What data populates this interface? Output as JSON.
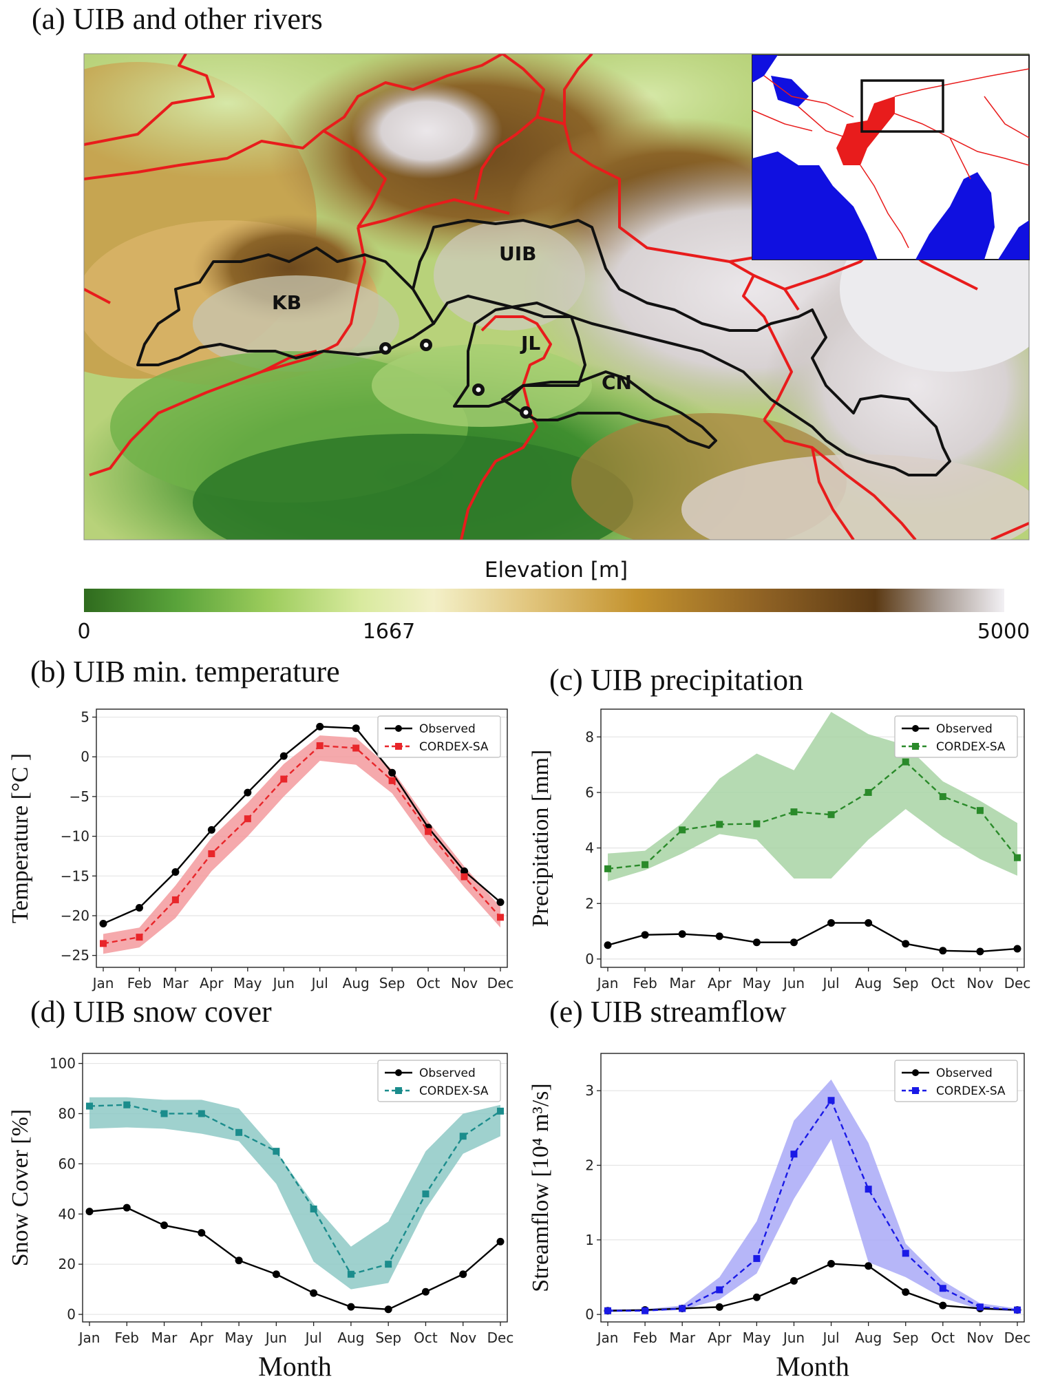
{
  "map_panel": {
    "title": "(a) UIB and other rivers",
    "basin_labels": [
      "KB",
      "UIB",
      "JL",
      "CN"
    ],
    "colorbar": {
      "title": "Elevation [m]",
      "ticks": [
        "0",
        "1667",
        "5000"
      ]
    }
  },
  "chart_data": [
    {
      "id": "b",
      "type": "line",
      "title": "(b) UIB min. temperature",
      "xlabel": "",
      "ylabel": "Temperature [°C ]",
      "categories": [
        "Jan",
        "Feb",
        "Mar",
        "Apr",
        "May",
        "Jun",
        "Jul",
        "Aug",
        "Sep",
        "Oct",
        "Nov",
        "Dec"
      ],
      "ylim": [
        -26.5,
        6
      ],
      "yticks": [
        5,
        0,
        -5,
        -10,
        -15,
        -20,
        -25
      ],
      "legend_position": "top-right",
      "series": [
        {
          "name": "Observed",
          "color": "#000000",
          "style": "solid",
          "marker": "circle",
          "values": [
            -21,
            -19,
            -14.5,
            -9.2,
            -4.5,
            0.1,
            3.8,
            3.6,
            -2,
            -8.9,
            -14.4,
            -18.3
          ]
        },
        {
          "name": "CORDEX-SA",
          "color": "#e8262a",
          "style": "dashed",
          "marker": "square",
          "values": [
            -23.5,
            -22.7,
            -18,
            -12.2,
            -7.8,
            -2.8,
            1.4,
            1.1,
            -3,
            -9.4,
            -15.1,
            -20.2
          ],
          "band_low": [
            -24.8,
            -24,
            -20.3,
            -14.4,
            -10,
            -5,
            -0.5,
            -1,
            -4.6,
            -10.9,
            -16.4,
            -21.5
          ],
          "band_high": [
            -22.3,
            -21.5,
            -16.2,
            -10.2,
            -5.8,
            -0.9,
            2.7,
            2.4,
            -1.6,
            -8.1,
            -13.8,
            -18.9
          ],
          "band_color": "#f39a9d"
        }
      ]
    },
    {
      "id": "c",
      "type": "line",
      "title": "(c) UIB precipitation",
      "xlabel": "",
      "ylabel": "Precipitation [mm]",
      "categories": [
        "Jan",
        "Feb",
        "Mar",
        "Apr",
        "May",
        "Jun",
        "Jul",
        "Aug",
        "Sep",
        "Oct",
        "Nov",
        "Dec"
      ],
      "ylim": [
        -0.3,
        9
      ],
      "yticks": [
        0,
        2,
        4,
        6,
        8
      ],
      "legend_position": "top-right",
      "series": [
        {
          "name": "Observed",
          "color": "#000000",
          "style": "solid",
          "marker": "circle",
          "values": [
            0.5,
            0.87,
            0.9,
            0.82,
            0.6,
            0.6,
            1.3,
            1.3,
            0.55,
            0.3,
            0.27,
            0.37
          ]
        },
        {
          "name": "CORDEX-SA",
          "color": "#2a8a2a",
          "style": "dashed",
          "marker": "square",
          "values": [
            3.25,
            3.4,
            4.65,
            4.85,
            4.87,
            5.3,
            5.2,
            6.0,
            7.1,
            5.85,
            5.35,
            3.65
          ],
          "band_low": [
            2.8,
            3.2,
            3.8,
            4.5,
            4.3,
            2.9,
            2.9,
            4.3,
            5.4,
            4.4,
            3.6,
            3.0
          ],
          "band_high": [
            3.8,
            3.9,
            4.9,
            6.5,
            7.4,
            6.8,
            8.9,
            8.1,
            7.7,
            6.4,
            5.7,
            4.9
          ],
          "band_color": "#a8d3a4"
        }
      ]
    },
    {
      "id": "d",
      "type": "line",
      "title": "(d) UIB snow cover",
      "xlabel": "Month",
      "ylabel": "Snow Cover [%]",
      "categories": [
        "Jan",
        "Feb",
        "Mar",
        "Apr",
        "May",
        "Jun",
        "Jul",
        "Aug",
        "Sep",
        "Oct",
        "Nov",
        "Dec"
      ],
      "ylim": [
        -3,
        104
      ],
      "yticks": [
        0,
        20,
        40,
        60,
        80,
        100
      ],
      "legend_position": "top-right",
      "series": [
        {
          "name": "Observed",
          "color": "#000000",
          "style": "solid",
          "marker": "circle",
          "values": [
            41,
            42.5,
            35.5,
            32.5,
            21.5,
            16,
            8.5,
            3,
            2,
            9,
            16,
            29
          ]
        },
        {
          "name": "CORDEX-SA",
          "color": "#1b8c8c",
          "style": "dashed",
          "marker": "square",
          "values": [
            83,
            83.5,
            80,
            80,
            72.5,
            65,
            42,
            16,
            20,
            48,
            71,
            81
          ],
          "band_low": [
            74,
            74.5,
            74,
            72,
            69,
            52,
            21,
            10,
            12.5,
            42,
            64,
            71
          ],
          "band_high": [
            86.5,
            86.5,
            85.5,
            85.5,
            82,
            65,
            44,
            27,
            37,
            65,
            80,
            83.5
          ],
          "band_color": "#8ec9c5"
        }
      ]
    },
    {
      "id": "e",
      "type": "line",
      "title": "(e) UIB streamflow",
      "xlabel": "Month",
      "ylabel": "Streamflow [10⁴ m³/s]",
      "categories": [
        "Jan",
        "Feb",
        "Mar",
        "Apr",
        "May",
        "Jun",
        "Jul",
        "Aug",
        "Sep",
        "Oct",
        "Nov",
        "Dec"
      ],
      "ylim": [
        -0.1,
        3.5
      ],
      "yticks": [
        0,
        1,
        2,
        3
      ],
      "legend_position": "top-right",
      "series": [
        {
          "name": "Observed",
          "color": "#000000",
          "style": "solid",
          "marker": "circle",
          "values": [
            0.05,
            0.06,
            0.08,
            0.1,
            0.23,
            0.45,
            0.68,
            0.65,
            0.3,
            0.12,
            0.08,
            0.06
          ]
        },
        {
          "name": "CORDEX-SA",
          "color": "#1a1ae6",
          "style": "dashed",
          "marker": "square",
          "values": [
            0.05,
            0.05,
            0.08,
            0.33,
            0.75,
            2.15,
            2.87,
            1.68,
            0.82,
            0.35,
            0.1,
            0.06
          ],
          "band_low": [
            0.03,
            0.04,
            0.06,
            0.2,
            0.55,
            1.55,
            2.35,
            0.7,
            0.5,
            0.22,
            0.07,
            0.04
          ],
          "band_high": [
            0.07,
            0.07,
            0.12,
            0.5,
            1.25,
            2.6,
            3.15,
            2.3,
            0.95,
            0.45,
            0.15,
            0.08
          ],
          "band_color": "#a9a9f7"
        }
      ]
    }
  ]
}
